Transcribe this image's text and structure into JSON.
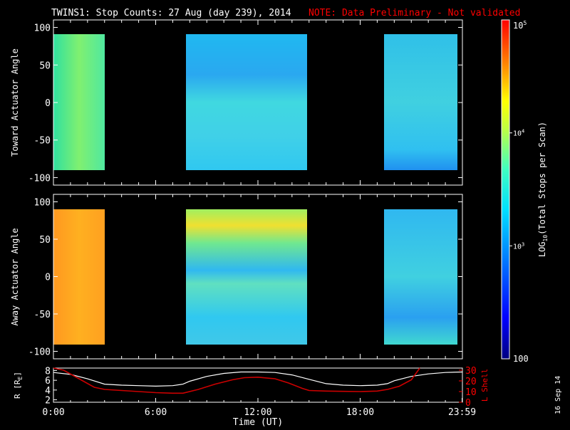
{
  "title": "TWINS1: Stop Counts: 27 Aug (day 239), 2014",
  "note": "NOTE: Data Preliminary - Not validated",
  "date_stamp": "16 Sep 14",
  "colors": {
    "background": "#000000",
    "frame": "#ffffff",
    "note": "#ff0000",
    "r_line": "#ffffff",
    "lshell_line": "#cc0000"
  },
  "chart_data": [
    {
      "type": "heatmap",
      "panel": "toward",
      "ylabel": "Toward Actuator Angle",
      "ylim": [
        -110,
        110
      ],
      "yticks": [
        "100",
        "50",
        "0",
        "-50",
        "-100"
      ],
      "ytick_values": [
        100,
        50,
        0,
        -50,
        -100
      ],
      "xlim_hours": [
        0,
        24
      ],
      "angle_range": [
        -90,
        90
      ],
      "data_blocks_hours": [
        [
          0.0,
          2.6
        ],
        [
          7.6,
          15.0
        ],
        [
          19.6,
          24.0
        ]
      ],
      "log10_counts_samples": [
        {
          "hours": [
            0.0,
            2.6
          ],
          "level": 3.55
        },
        {
          "hours": [
            7.6,
            15.0
          ],
          "level": 3.1
        },
        {
          "hours": [
            19.6,
            24.0
          ],
          "level": 3.15
        }
      ]
    },
    {
      "type": "heatmap",
      "panel": "away",
      "ylabel": "Away Actuator Angle",
      "ylim": [
        -110,
        110
      ],
      "yticks": [
        "100",
        "50",
        "0",
        "-50",
        "-100"
      ],
      "ytick_values": [
        100,
        50,
        0,
        -50,
        -100
      ],
      "xlim_hours": [
        0,
        24
      ],
      "angle_range": [
        -90,
        90
      ],
      "data_blocks_hours": [
        [
          0.0,
          2.6
        ],
        [
          7.6,
          15.0
        ],
        [
          19.6,
          24.0
        ]
      ],
      "log10_counts_samples": [
        {
          "hours": [
            0.0,
            2.6
          ],
          "level": 4.15
        },
        {
          "hours": [
            7.6,
            15.0
          ],
          "level": 3.3
        },
        {
          "hours": [
            19.6,
            24.0
          ],
          "level": 3.15
        }
      ]
    },
    {
      "type": "line",
      "panel": "orbit",
      "ylabel_left": "R [R",
      "ylabel_left_sub": "E",
      "ylabel_left_close": "]",
      "ylabel_right": "L Shell",
      "yticks_left": [
        "8",
        "6",
        "4",
        "2"
      ],
      "ytick_values_left": [
        8,
        6,
        4,
        2
      ],
      "ylim_left": [
        1.5,
        8.5
      ],
      "yticks_right": [
        "30",
        "20",
        "10",
        "0"
      ],
      "ytick_values_right": [
        30,
        20,
        10,
        0
      ],
      "ylim_right": [
        0,
        32
      ],
      "xticks": [
        "0:00",
        "6:00",
        "12:00",
        "18:00",
        "23:59"
      ],
      "xtick_values": [
        0,
        6,
        12,
        18,
        23.98
      ],
      "xlabel": "Time (UT)",
      "xlim": [
        0,
        24
      ],
      "series": [
        {
          "key": "r",
          "x": [
            0,
            1,
            2,
            3,
            4,
            5,
            6,
            7,
            7.6,
            8,
            9,
            10,
            11,
            12,
            13,
            14,
            15,
            16,
            17,
            18,
            19,
            19.6,
            20,
            21,
            22,
            23,
            24
          ],
          "y": [
            7.6,
            7.2,
            6.3,
            5.2,
            5.0,
            4.9,
            4.8,
            4.9,
            5.2,
            5.8,
            6.8,
            7.4,
            7.7,
            7.7,
            7.6,
            7.1,
            6.2,
            5.3,
            5.0,
            4.9,
            5.0,
            5.3,
            5.9,
            6.8,
            7.3,
            7.6,
            7.7
          ]
        },
        {
          "key": "lshell",
          "x": [
            0,
            0.6,
            1.5,
            2.4,
            3,
            4,
            5,
            6,
            7,
            7.6,
            8.5,
            9.5,
            10.5,
            11.2,
            12,
            13,
            13.8,
            14.6,
            15,
            16,
            17,
            18,
            19,
            19.6,
            20.3,
            21,
            21.5
          ],
          "y": [
            32,
            30,
            22,
            14,
            12,
            11,
            10,
            9,
            8.5,
            8.5,
            12,
            17,
            21,
            23,
            23.5,
            22,
            18,
            13,
            11,
            10.5,
            10.2,
            10,
            10.5,
            12,
            15,
            21,
            32
          ]
        }
      ]
    },
    {
      "type": "colorbar",
      "label_prefix": "LOG",
      "label_sub": "10",
      "label_suffix": "(Total Stops per Scan)",
      "scale": "log",
      "range_log10": [
        2,
        5
      ],
      "top_label_base": "10",
      "top_label_exp": "5",
      "mid_labels": [
        {
          "base": "10",
          "exp": "4",
          "log10": 4
        },
        {
          "base": "10",
          "exp": "3",
          "log10": 3
        }
      ],
      "bottom_label": "100",
      "bottom_log10": 2
    }
  ]
}
